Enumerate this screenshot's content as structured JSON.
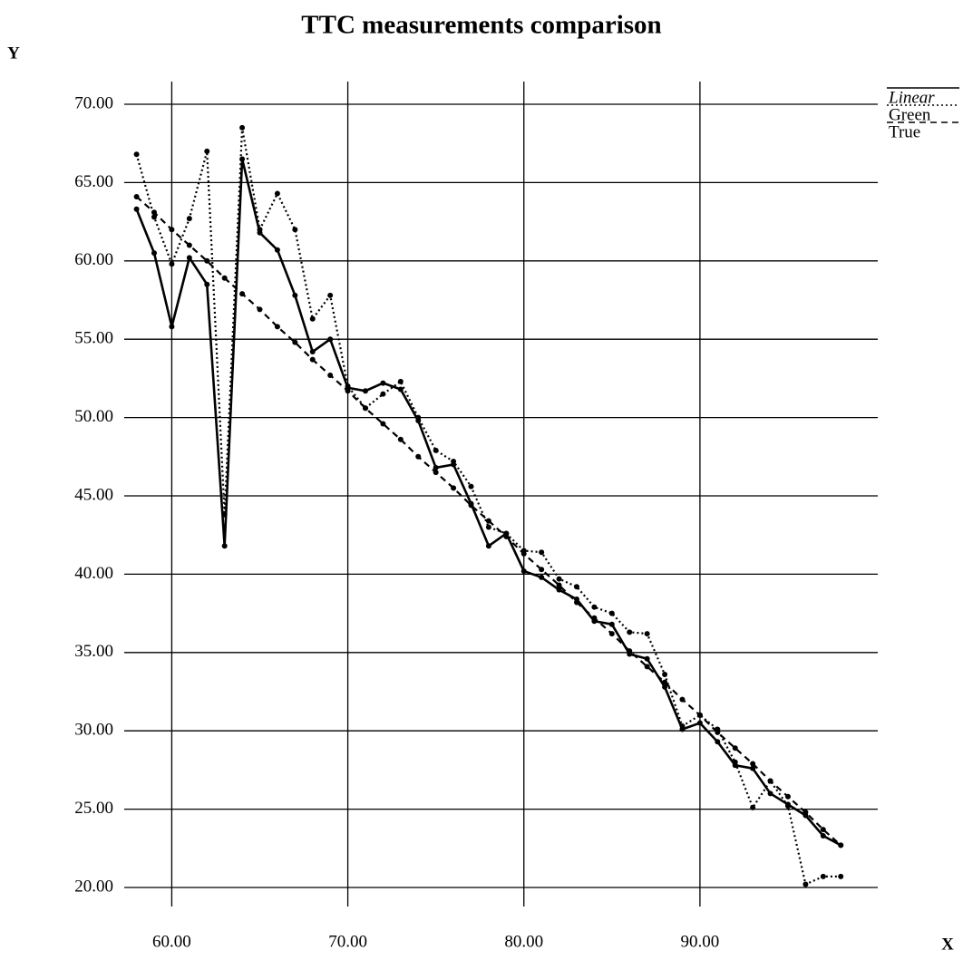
{
  "chart_data": {
    "type": "line",
    "title": "TTC measurements comparison",
    "x_label": "X",
    "y_label": "Y",
    "x": [
      58,
      59,
      60,
      61,
      62,
      63,
      64,
      65,
      66,
      67,
      68,
      69,
      70,
      71,
      72,
      73,
      74,
      75,
      76,
      77,
      78,
      79,
      80,
      81,
      82,
      83,
      84,
      85,
      86,
      87,
      88,
      89,
      90,
      91,
      92,
      93,
      94,
      95,
      96,
      97,
      98
    ],
    "series": [
      {
        "name": "Linear",
        "color": "#000000",
        "style": "solid",
        "values": [
          63.3,
          60.5,
          55.8,
          60.2,
          58.5,
          41.8,
          66.5,
          61.8,
          60.7,
          57.8,
          54.2,
          55.0,
          51.9,
          51.7,
          52.2,
          51.8,
          49.8,
          46.8,
          47.0,
          44.5,
          41.8,
          42.6,
          40.2,
          39.8,
          39.0,
          38.4,
          37.0,
          36.8,
          34.9,
          34.6,
          32.8,
          30.1,
          30.5,
          29.3,
          27.8,
          27.6,
          26.0,
          25.3,
          24.6,
          23.3,
          22.7
        ]
      },
      {
        "name": "Green",
        "color": "#000000",
        "style": "dotted",
        "values": [
          66.8,
          62.8,
          59.8,
          62.7,
          67.0,
          43.8,
          68.5,
          62.0,
          64.3,
          62.0,
          56.3,
          57.8,
          52.0,
          50.6,
          51.5,
          52.3,
          50.0,
          47.9,
          47.2,
          45.6,
          43.0,
          42.6,
          41.5,
          41.4,
          39.7,
          39.2,
          37.9,
          37.5,
          36.3,
          36.2,
          33.6,
          30.3,
          31.0,
          30.1,
          28.0,
          25.1,
          26.8,
          25.2,
          20.2,
          20.7,
          20.7
        ]
      },
      {
        "name": "True",
        "color": "#000000",
        "style": "dashed",
        "values": [
          64.1,
          63.1,
          62.0,
          61.0,
          60.0,
          58.9,
          57.9,
          56.9,
          55.8,
          54.8,
          53.7,
          52.7,
          51.7,
          50.6,
          49.6,
          48.6,
          47.5,
          46.5,
          45.5,
          44.4,
          43.4,
          42.4,
          41.3,
          40.3,
          39.3,
          38.2,
          37.2,
          36.2,
          35.1,
          34.1,
          33.1,
          32.0,
          31.0,
          29.9,
          28.9,
          27.9,
          26.8,
          25.8,
          24.8,
          23.7,
          22.7
        ]
      }
    ],
    "xlim": [
      57.3,
      100.1
    ],
    "xticks": [
      {
        "value": 60,
        "label": "60.00"
      },
      {
        "value": 70,
        "label": "70.00"
      },
      {
        "value": 80,
        "label": "80.00"
      },
      {
        "value": 90,
        "label": "90.00"
      }
    ],
    "ylim": [
      20,
      70
    ],
    "yticks": [
      {
        "value": 20,
        "label": "20.00"
      },
      {
        "value": 25,
        "label": "25.00"
      },
      {
        "value": 30,
        "label": "30.00"
      },
      {
        "value": 35,
        "label": "35.00"
      },
      {
        "value": 40,
        "label": "40.00"
      },
      {
        "value": 45,
        "label": "45.00"
      },
      {
        "value": 50,
        "label": "50.00"
      },
      {
        "value": 55,
        "label": "55.00"
      },
      {
        "value": 60,
        "label": "60.00"
      },
      {
        "value": 65,
        "label": "65.00"
      },
      {
        "value": 70,
        "label": "70.00"
      }
    ],
    "grid": true,
    "legend": "upper right"
  }
}
